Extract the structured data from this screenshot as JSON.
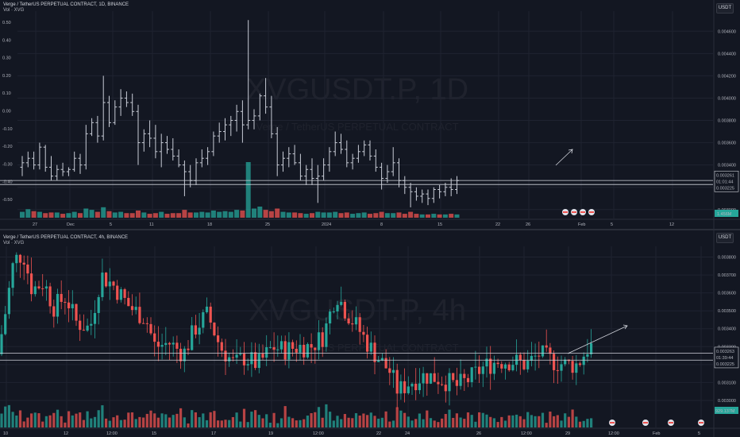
{
  "top_chart": {
    "header_title": "Verge / TetherUS PERPETUAL CONTRACT, 1D, BINANCE",
    "header_sub": "Vol · XVG",
    "currency_button": "USDT",
    "watermark": "XVGUSDT.P, 1D",
    "watermark_sub": "Verge / TetherUS PERPETUAL CONTRACT",
    "left_axis_ticks": [
      "0.50",
      "0.40",
      "0.30",
      "0.20",
      "0.10",
      "0.00",
      "-0.10",
      "-0.20",
      "-0.30",
      "-0.40",
      "-0.50"
    ],
    "price_ticks": [
      "0.004600",
      "0.004400",
      "0.004200",
      "0.004000",
      "0.003800",
      "0.003600",
      "0.003400",
      "0.003200",
      "0.003000"
    ],
    "price_labels": [
      "0.003261",
      "01:01:44",
      "0.003225"
    ],
    "volume_label": "1.456M",
    "x_ticks": [
      "27",
      "Dec",
      "5",
      "11",
      "18",
      "25",
      "2024",
      "8",
      "15",
      "22",
      "26",
      "Feb",
      "5",
      "12"
    ]
  },
  "bottom_chart": {
    "header_title": "Verge / TetherUS PERPETUAL CONTRACT, 4h, BINANCE",
    "header_sub": "Vol · XVG",
    "currency_button": "USDT",
    "watermark": "XVGUSDT.P, 4h",
    "watermark_sub": "Verge / TetherUS PERPETUAL CONTRACT",
    "price_ticks": [
      "0.003800",
      "0.003700",
      "0.003600",
      "0.003500",
      "0.003400",
      "0.003300",
      "0.003200",
      "0.003100",
      "0.003000"
    ],
    "price_labels": [
      "0.003263",
      "01:39:44",
      "0.003225"
    ],
    "volume_label": "929.137M",
    "x_ticks": [
      "10",
      "12",
      "12:00",
      "15",
      "17",
      "19",
      "12:00",
      "22",
      "24",
      "26",
      "12:00",
      "29",
      "12:00",
      "Feb",
      "5"
    ]
  },
  "colors": {
    "up": "#26a69a",
    "down": "#ef5350",
    "bg": "#131722",
    "grid": "#1f2330"
  },
  "chart_data": [
    {
      "type": "ohlc",
      "title": "Verge / TetherUS PERPETUAL CONTRACT, 1D, BINANCE",
      "ylim": [
        0.00292,
        0.00478
      ],
      "x_range": [
        "Nov 24 2023",
        "Feb 14 2024"
      ],
      "bars": [
        [
          0.00338,
          0.00348,
          0.0033,
          0.00342
        ],
        [
          0.00342,
          0.00352,
          0.00338,
          0.00346
        ],
        [
          0.00346,
          0.00352,
          0.00336,
          0.0034
        ],
        [
          0.0034,
          0.0036,
          0.00336,
          0.00356
        ],
        [
          0.00356,
          0.00358,
          0.00334,
          0.00338
        ],
        [
          0.00338,
          0.00348,
          0.00326,
          0.0033
        ],
        [
          0.0033,
          0.0034,
          0.00326,
          0.00336
        ],
        [
          0.00336,
          0.00342,
          0.0033,
          0.00334
        ],
        [
          0.00334,
          0.00338,
          0.0033,
          0.00336
        ],
        [
          0.00336,
          0.00352,
          0.00334,
          0.00346
        ],
        [
          0.00346,
          0.0035,
          0.00332,
          0.0034
        ],
        [
          0.0034,
          0.00376,
          0.00336,
          0.00368
        ],
        [
          0.00368,
          0.00382,
          0.00366,
          0.00378
        ],
        [
          0.00378,
          0.00384,
          0.0036,
          0.00366
        ],
        [
          0.00366,
          0.0042,
          0.00362,
          0.00396
        ],
        [
          0.00396,
          0.00402,
          0.00374,
          0.00378
        ],
        [
          0.00378,
          0.00398,
          0.00376,
          0.00392
        ],
        [
          0.00392,
          0.00408,
          0.00384,
          0.004
        ],
        [
          0.004,
          0.00406,
          0.00392,
          0.00396
        ],
        [
          0.00396,
          0.00404,
          0.00384,
          0.00388
        ],
        [
          0.00388,
          0.00394,
          0.0034,
          0.0036
        ],
        [
          0.0036,
          0.00372,
          0.00352,
          0.00368
        ],
        [
          0.00368,
          0.0038,
          0.00356,
          0.00364
        ],
        [
          0.00364,
          0.00376,
          0.00346,
          0.00352
        ],
        [
          0.00352,
          0.00368,
          0.00338,
          0.0036
        ],
        [
          0.0036,
          0.00366,
          0.0035,
          0.00354
        ],
        [
          0.00354,
          0.00364,
          0.00344,
          0.00348
        ],
        [
          0.00348,
          0.00354,
          0.00338,
          0.0034
        ],
        [
          0.0034,
          0.00344,
          0.00312,
          0.00334
        ],
        [
          0.00334,
          0.0034,
          0.0032,
          0.00326
        ],
        [
          0.00326,
          0.00346,
          0.00322,
          0.00342
        ],
        [
          0.00342,
          0.00354,
          0.00338,
          0.00346
        ],
        [
          0.00346,
          0.00356,
          0.0034,
          0.00352
        ],
        [
          0.00352,
          0.0037,
          0.00348,
          0.00366
        ],
        [
          0.00366,
          0.00378,
          0.0036,
          0.0037
        ],
        [
          0.0037,
          0.00382,
          0.00362,
          0.00376
        ],
        [
          0.00376,
          0.00384,
          0.00366,
          0.0038
        ],
        [
          0.0038,
          0.00394,
          0.0037,
          0.00388
        ],
        [
          0.00388,
          0.00398,
          0.0036,
          0.00376
        ],
        [
          0.00376,
          0.0047,
          0.00372,
          0.0038
        ],
        [
          0.0038,
          0.0039,
          0.00372,
          0.00384
        ],
        [
          0.00384,
          0.00404,
          0.0038,
          0.00402
        ],
        [
          0.00402,
          0.00418,
          0.00386,
          0.00392
        ],
        [
          0.00392,
          0.00402,
          0.00364,
          0.00368
        ],
        [
          0.00368,
          0.00374,
          0.0033,
          0.0034
        ],
        [
          0.0034,
          0.00352,
          0.00334,
          0.00346
        ],
        [
          0.00346,
          0.00356,
          0.00338,
          0.0035
        ],
        [
          0.0035,
          0.00358,
          0.0034,
          0.00342
        ],
        [
          0.00342,
          0.0035,
          0.00326,
          0.0033
        ],
        [
          0.0033,
          0.0034,
          0.00322,
          0.00336
        ],
        [
          0.00336,
          0.00346,
          0.00322,
          0.00328
        ],
        [
          0.00328,
          0.0034,
          0.00306,
          0.0033
        ],
        [
          0.0033,
          0.00346,
          0.00326,
          0.0034
        ],
        [
          0.0034,
          0.00356,
          0.00334,
          0.00352
        ],
        [
          0.00352,
          0.0037,
          0.00348,
          0.0036
        ],
        [
          0.0036,
          0.00368,
          0.0035,
          0.00354
        ],
        [
          0.00354,
          0.00362,
          0.00338,
          0.00342
        ],
        [
          0.00342,
          0.0035,
          0.00336,
          0.00346
        ],
        [
          0.00346,
          0.00358,
          0.00342,
          0.00352
        ],
        [
          0.00352,
          0.00362,
          0.00348,
          0.00358
        ],
        [
          0.00358,
          0.00362,
          0.00344,
          0.00348
        ],
        [
          0.00348,
          0.00354,
          0.00334,
          0.00338
        ],
        [
          0.00338,
          0.00342,
          0.00318,
          0.00328
        ],
        [
          0.00328,
          0.0034,
          0.00324,
          0.00334
        ],
        [
          0.00334,
          0.00356,
          0.0033,
          0.00342
        ],
        [
          0.00342,
          0.00346,
          0.0032,
          0.00326
        ],
        [
          0.00326,
          0.0033,
          0.00314,
          0.0032
        ],
        [
          0.0032,
          0.00324,
          0.00302,
          0.00316
        ],
        [
          0.00316,
          0.0032,
          0.00308,
          0.00312
        ],
        [
          0.00312,
          0.00318,
          0.00306,
          0.00314
        ],
        [
          0.00314,
          0.00318,
          0.00304,
          0.0031
        ],
        [
          0.0031,
          0.0032,
          0.00306,
          0.00318
        ],
        [
          0.00318,
          0.00322,
          0.0031,
          0.00316
        ],
        [
          0.00316,
          0.00324,
          0.00312,
          0.0032
        ],
        [
          0.0032,
          0.00328,
          0.00312,
          0.00318
        ],
        [
          0.00318,
          0.0033,
          0.00314,
          0.00326
        ]
      ],
      "volumes": [
        0.9,
        1.3,
        1.0,
        0.9,
        0.7,
        0.8,
        0.8,
        0.6,
        0.7,
        0.9,
        0.7,
        1.4,
        1.2,
        0.9,
        1.6,
        1.0,
        0.8,
        0.9,
        0.7,
        0.7,
        1.1,
        0.8,
        0.6,
        0.7,
        0.9,
        0.6,
        0.7,
        0.7,
        1.2,
        0.8,
        0.8,
        0.9,
        0.8,
        1.1,
        0.9,
        1.0,
        0.9,
        1.2,
        1.1,
        8.5,
        1.4,
        1.7,
        1.2,
        1.0,
        1.4,
        0.9,
        0.8,
        0.8,
        0.7,
        0.6,
        0.7,
        0.9,
        0.8,
        0.8,
        0.9,
        0.7,
        0.8,
        0.6,
        0.7,
        0.8,
        0.6,
        0.7,
        0.9,
        0.7,
        0.7,
        0.8,
        0.6,
        0.9,
        0.6,
        0.5,
        0.5,
        0.6,
        0.5,
        0.5,
        0.6,
        0.5
      ],
      "horizontal_lines": [
        0.003261,
        0.003225
      ],
      "last_price": 0.003261
    },
    {
      "type": "ohlc",
      "title": "Verge / TetherUS PERPETUAL CONTRACT, 4h, BINANCE",
      "ylim": [
        0.00292,
        0.00386
      ],
      "x_range": [
        "Jan 10 2024",
        "Feb 6 2024"
      ],
      "last_price": 0.003263,
      "horizontal_lines": [
        0.003263,
        0.003225
      ],
      "volume_last": "929.137M"
    }
  ]
}
